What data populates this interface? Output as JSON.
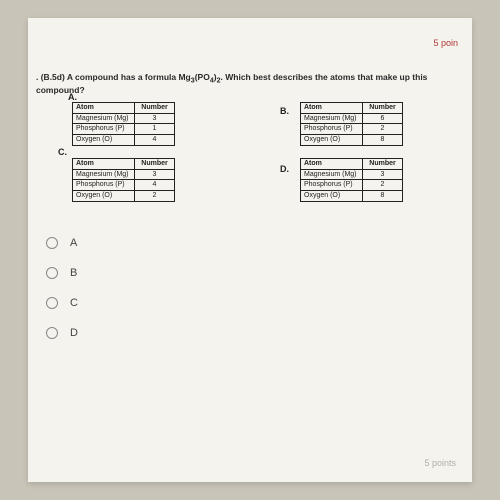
{
  "points_top": "5 poin",
  "points_bottom": "5 points",
  "question_prefix": ". (B.5d) A compound has a formula Mg",
  "question_sub1": "3",
  "question_mid": "(PO",
  "question_sub2": "4",
  "question_close": ")",
  "question_sub3": "2",
  "question_suffix": ". Which best describes the atoms that make up this compound?",
  "labels": {
    "a": "A.",
    "b": "B.",
    "c": "C.",
    "d": "D."
  },
  "headers": {
    "atom": "Atom",
    "number": "Number"
  },
  "elements": {
    "mg": "Magnesium (Mg)",
    "p": "Phosphorus (P)",
    "o": "Oxygen (O)"
  },
  "tables": {
    "a": {
      "mg": "3",
      "p": "1",
      "o": "4"
    },
    "b": {
      "mg": "6",
      "p": "2",
      "o": "8"
    },
    "c": {
      "mg": "3",
      "p": "4",
      "o": "2"
    },
    "d": {
      "mg": "3",
      "p": "2",
      "o": "8"
    }
  },
  "radio": {
    "a": "A",
    "b": "B",
    "c": "C",
    "d": "D"
  }
}
